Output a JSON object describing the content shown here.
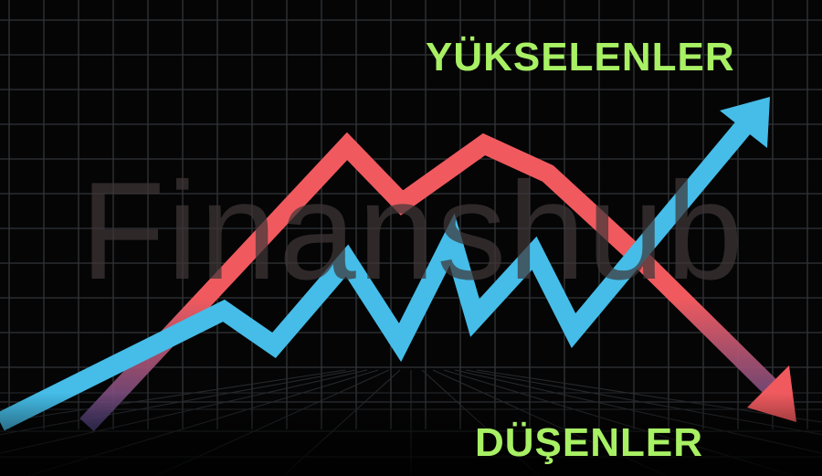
{
  "headline_top": "YÜKSELENLER",
  "headline_bottom": "DÜŞENLER",
  "watermark": "Finanshub",
  "colors": {
    "headline": "#a8f064",
    "rising_line": "#45bde8",
    "falling_line": "#f05a5e",
    "grid": "#3a3d40",
    "background": "#050506"
  },
  "icons": {
    "rising": "arrow-up-right",
    "falling": "arrow-down-right"
  }
}
